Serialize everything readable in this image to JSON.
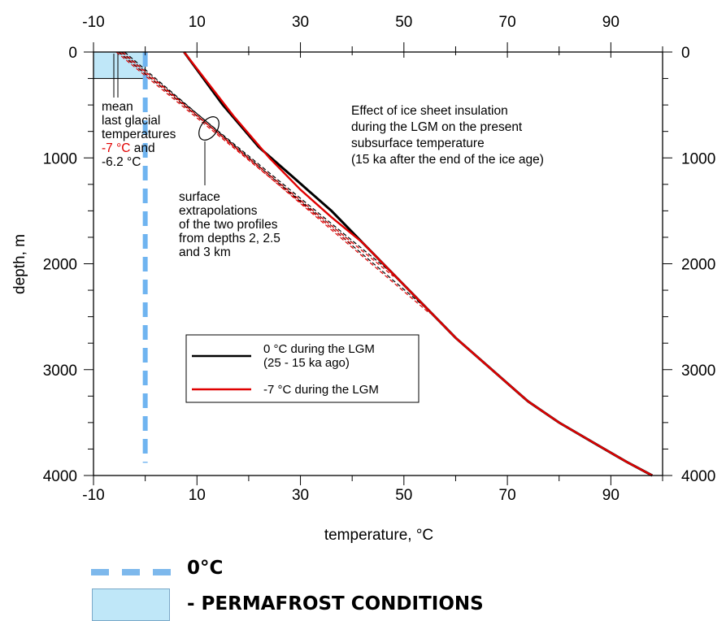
{
  "chart_data": {
    "type": "line",
    "xlabel": "temperature, °C",
    "ylabel": "depth, m",
    "xlim": [
      -10,
      100
    ],
    "ylim": [
      0,
      4000
    ],
    "y_inverted": true,
    "x_tick_labels": [
      "-10",
      "10",
      "30",
      "50",
      "70",
      "90"
    ],
    "y_tick_labels_left": [
      "0",
      "1000",
      "2000",
      "3000",
      "4000"
    ],
    "y_tick_labels_right": [
      "0",
      "1000",
      "2000",
      "3000",
      "4000"
    ],
    "series": [
      {
        "name": "0 °C during the LGM (25 - 15 ka ago)",
        "color": "#000000",
        "points": [
          [
            7.5,
            0
          ],
          [
            15,
            500
          ],
          [
            22,
            900
          ],
          [
            29,
            1200
          ],
          [
            36,
            1500
          ],
          [
            42,
            1800
          ],
          [
            48,
            2100
          ],
          [
            54,
            2400
          ],
          [
            60,
            2700
          ],
          [
            67,
            3000
          ],
          [
            74,
            3300
          ],
          [
            80,
            3500
          ],
          [
            87,
            3700
          ],
          [
            93,
            3870
          ],
          [
            98,
            4000
          ]
        ]
      },
      {
        "name": "-7 °C during the LGM",
        "color": "#e00000",
        "points": [
          [
            7.5,
            0
          ],
          [
            17,
            600
          ],
          [
            24,
            1000
          ],
          [
            30,
            1300
          ],
          [
            36,
            1560
          ],
          [
            42,
            1800
          ],
          [
            48,
            2100
          ],
          [
            54,
            2400
          ],
          [
            60,
            2700
          ],
          [
            67,
            3000
          ],
          [
            74,
            3300
          ],
          [
            80,
            3500
          ],
          [
            87,
            3700
          ],
          [
            93,
            3870
          ],
          [
            98,
            4000
          ]
        ]
      }
    ],
    "extrapolations": [
      {
        "color": "#000000",
        "points": [
          [
            -5.2,
            0
          ],
          [
            40,
            1800
          ]
        ]
      },
      {
        "color": "#000000",
        "points": [
          [
            -4.6,
            0
          ],
          [
            48,
            2100
          ]
        ]
      },
      {
        "color": "#000000",
        "points": [
          [
            -4.0,
            0
          ],
          [
            55,
            2450
          ]
        ]
      },
      {
        "color": "#e00000",
        "points": [
          [
            -5.6,
            0
          ],
          [
            40,
            1820
          ]
        ]
      },
      {
        "color": "#e00000",
        "points": [
          [
            -5.0,
            0
          ],
          [
            48,
            2120
          ]
        ]
      },
      {
        "color": "#e00000",
        "points": [
          [
            -4.4,
            0
          ],
          [
            55,
            2470
          ]
        ]
      }
    ],
    "zero_line": {
      "x": 0,
      "color": "#6fb4f0"
    },
    "permafrost_box": {
      "x": [
        -10,
        0
      ],
      "y": [
        0,
        250
      ],
      "color": "#bfe7f8"
    },
    "annotations": {
      "mean_lines": [
        "mean",
        "last glacial",
        "temperatures"
      ],
      "mean_red": "-7 °C",
      "mean_and": " and",
      "mean_last": "-6.2 °C",
      "effect": [
        "Effect of ice sheet insulation",
        "during the LGM on the present",
        "subsurface temperature",
        "(15 ka after the end of the ice age)"
      ],
      "surface": [
        "surface",
        "extrapolations",
        "of the two profiles",
        "from depths 2, 2.5",
        "and 3 km"
      ]
    },
    "legend": {
      "placement": "middle-left",
      "entries": [
        {
          "lines": [
            "0 °C during the LGM",
            "(25 - 15 ka ago)"
          ],
          "color": "#000000"
        },
        {
          "lines": [
            "-7 °C during the LGM"
          ],
          "color": "#e00000"
        }
      ]
    }
  },
  "key": {
    "zero_label": "0°C",
    "permafrost_label": "- PERMAFROST CONDITIONS",
    "dash_color": "#7db8ec",
    "swatch_color": "#bfe7f8"
  }
}
